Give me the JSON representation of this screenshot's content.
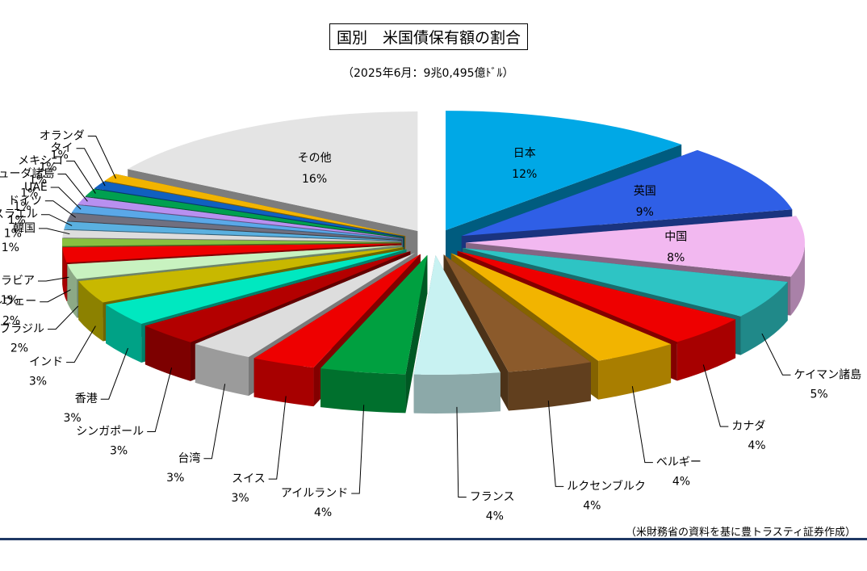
{
  "title": "国別　米国債保有額の割合",
  "subtitle": "（2025年6月：9兆0,495億ﾄﾞﾙ）",
  "source": "（米財務省の資料を基に豊トラスティ証券作成）",
  "chart_data": {
    "type": "pie",
    "style": "3d-exploded",
    "categories": [
      "日本",
      "英国",
      "中国",
      "ケイマン諸島",
      "カナダ",
      "ベルギー",
      "ルクセンブルク",
      "フランス",
      "アイルランド",
      "スイス",
      "台湾",
      "シンガポール",
      "香港",
      "インド",
      "ブラジル",
      "ノルウェー",
      "サウジアラビア",
      "韓国",
      "イスラエル",
      "ドイツ",
      "UAE",
      "バミューダ諸島",
      "メキシコ",
      "タイ",
      "オランダ",
      "その他"
    ],
    "values": [
      12,
      9,
      8,
      5,
      4,
      4,
      4,
      4,
      4,
      3,
      3,
      3,
      3,
      3,
      2,
      2,
      1,
      1,
      1,
      1,
      1,
      1,
      1,
      1,
      1,
      16
    ],
    "labels": [
      "12%",
      "9%",
      "8%",
      "5%",
      "4%",
      "4%",
      "4%",
      "4%",
      "4%",
      "3%",
      "3%",
      "3%",
      "3%",
      "3%",
      "2%",
      "2%",
      "1%",
      "1%",
      "1%",
      "1%",
      "1%",
      "1%",
      "1%",
      "1%",
      "1%",
      "16%"
    ],
    "colors": [
      "#00a8e6",
      "#2f5fe6",
      "#f2b8f0",
      "#2ec4c4",
      "#ee0000",
      "#f2b400",
      "#8b5a2b",
      "#c8f2f2",
      "#00a040",
      "#ee0000",
      "#dddddd",
      "#b30000",
      "#00e8c0",
      "#c8b800",
      "#c8f2c0",
      "#ee0000",
      "#88c040",
      "#dddddd",
      "#5ab0e0",
      "#707080",
      "#5aa8e8",
      "#b890f0",
      "#00a050",
      "#1060c0",
      "#f2b400",
      "#e4e4e4"
    ],
    "legend": "none"
  }
}
